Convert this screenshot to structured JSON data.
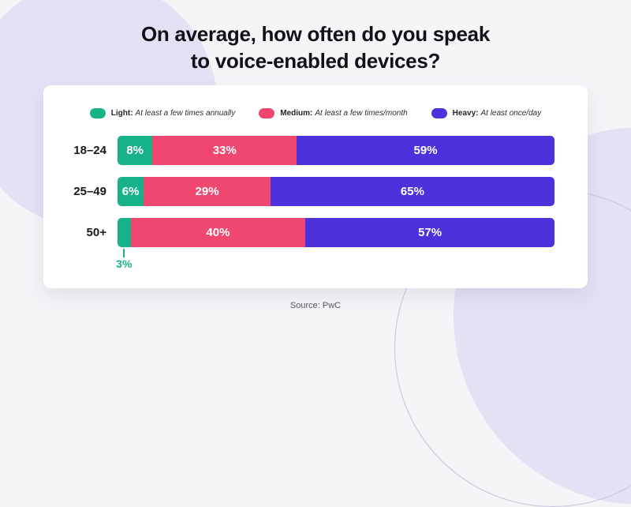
{
  "title": {
    "line1": "On average, how often do you speak",
    "line2": "to voice-enabled devices?"
  },
  "legend": [
    {
      "label": "Light:",
      "description": "At least a few times annually",
      "color": "#17B287"
    },
    {
      "label": "Medium:",
      "description": "At least a few times/month",
      "color": "#EF476F"
    },
    {
      "label": "Heavy:",
      "description": "At least once/day",
      "color": "#4C31DD"
    }
  ],
  "chart_data": {
    "type": "bar",
    "orientation": "horizontal-stacked",
    "title": "On average, how often do you speak to voice-enabled devices?",
    "categories": [
      "18–24",
      "25–49",
      "50+"
    ],
    "series": [
      {
        "name": "Light",
        "color": "#17B287",
        "values": [
          8,
          6,
          3
        ]
      },
      {
        "name": "Medium",
        "color": "#EF476F",
        "values": [
          33,
          29,
          40
        ]
      },
      {
        "name": "Heavy",
        "color": "#4C31DD",
        "values": [
          59,
          65,
          57
        ]
      }
    ],
    "value_suffix": "%",
    "xlim": [
      0,
      100
    ],
    "legend_position": "top",
    "grid": false,
    "callout": {
      "category": "50+",
      "series": "Light",
      "text": "3%"
    }
  },
  "source": "Source: PwC",
  "colors": {
    "background": "#F3F5F7",
    "decor_circle": "#E4E1F4",
    "decor_outline": "#C7C4D6",
    "card": "#FFFFFF",
    "title_text": "#121216",
    "bar_value_text": "#FFFFFF"
  }
}
